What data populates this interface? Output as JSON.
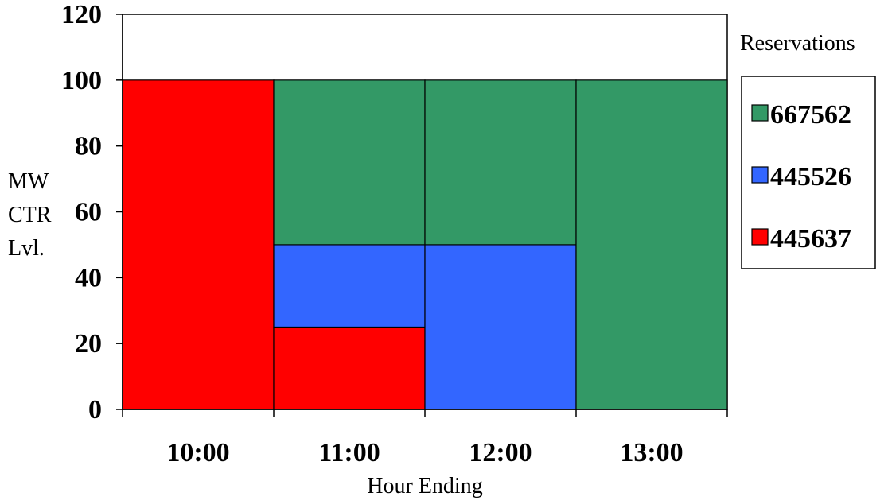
{
  "chart_data": {
    "type": "bar",
    "stacked": true,
    "categories": [
      "10:00",
      "11:00",
      "12:00",
      "13:00"
    ],
    "series": [
      {
        "name": "445637",
        "color": "#ff0000",
        "values": [
          100,
          25,
          0,
          0
        ]
      },
      {
        "name": "445526",
        "color": "#3366ff",
        "values": [
          0,
          25,
          50,
          0
        ]
      },
      {
        "name": "667562",
        "color": "#339966",
        "values": [
          0,
          50,
          50,
          100
        ]
      }
    ],
    "legend_order": [
      "667562",
      "445526",
      "445637"
    ],
    "legend_title": "Reservations",
    "legend_position": "right",
    "xlabel": "Hour Ending",
    "ylabel_lines": [
      "MW",
      "CTR",
      "Lvl."
    ],
    "ylim": [
      0,
      120
    ],
    "yticks": [
      0,
      20,
      40,
      60,
      80,
      100,
      120
    ],
    "grid": false
  }
}
